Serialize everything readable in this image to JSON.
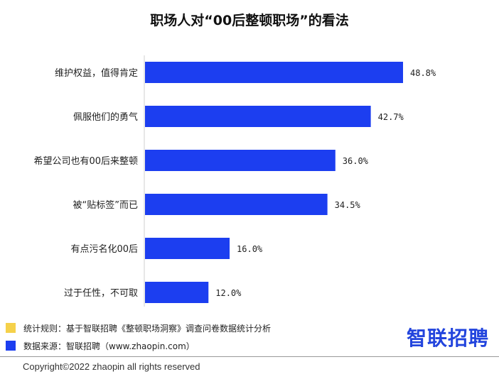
{
  "chart_data": {
    "type": "bar",
    "orientation": "horizontal",
    "title": "职场人对“00后整顿职场”的看法",
    "categories": [
      "维护权益，值得肯定",
      "佩服他们的勇气",
      "希望公司也有00后来整顿",
      "被“贴标签”而已",
      "有点污名化00后",
      "过于任性，不可取"
    ],
    "values": [
      48.8,
      42.7,
      36.0,
      34.5,
      16.0,
      12.0
    ],
    "value_labels": [
      "48.8%",
      "42.7%",
      "36.0%",
      "34.5%",
      "16.0%",
      "12.0%"
    ],
    "unit": "%",
    "bar_color": "#1c3ef0",
    "xlim": [
      0,
      55
    ],
    "grid": false
  },
  "notes": [
    {
      "text": "统计规则：基于智联招聘《整顿职场洞察》调查问卷数据统计分析",
      "color": "#f5d14a"
    },
    {
      "text": "数据来源：智联招聘（www.zhaopin.com）",
      "color": "#1c3ef0"
    }
  ],
  "logo": {
    "text": "智联招聘"
  },
  "copyright": "Copyright©2022 zhaopin all rights reserved"
}
